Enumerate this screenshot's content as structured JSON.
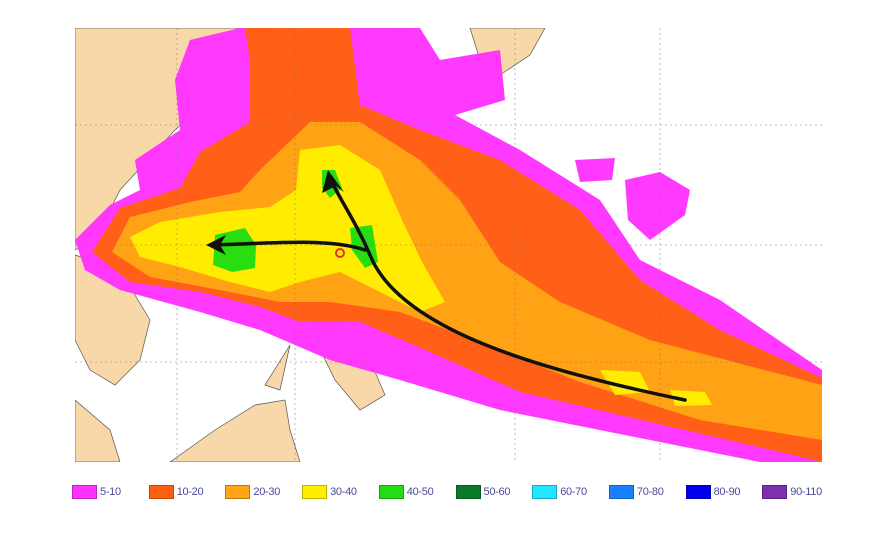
{
  "map": {
    "land_color": "#f8d8a8",
    "ocean_color": "#ffffff",
    "track_color": "#111111",
    "storm_center_color": "#e83030"
  },
  "legend": {
    "items": [
      {
        "label": "5-10",
        "color": "#ff33ff"
      },
      {
        "label": "10-20",
        "color": "#ff6010"
      },
      {
        "label": "20-30",
        "color": "#ffa515"
      },
      {
        "label": "30-40",
        "color": "#ffee00"
      },
      {
        "label": "40-50",
        "color": "#22dd11"
      },
      {
        "label": "50-60",
        "color": "#0a7a2a"
      },
      {
        "label": "60-70",
        "color": "#22e5ff"
      },
      {
        "label": "70-80",
        "color": "#1a80ff"
      },
      {
        "label": "80-90",
        "color": "#0000ee"
      },
      {
        "label": "90-110",
        "color": "#7a30b0"
      }
    ]
  }
}
